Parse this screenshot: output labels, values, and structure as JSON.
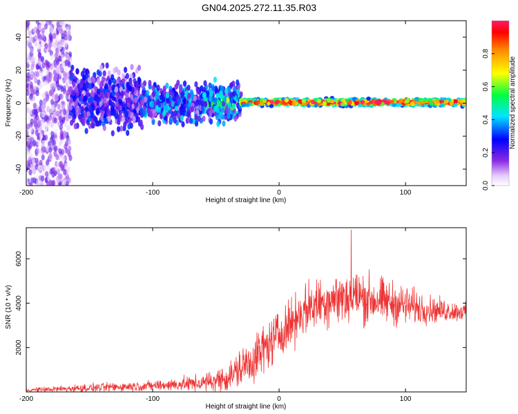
{
  "title": "GN04.2025.272.11.35.R03",
  "chart_data": [
    {
      "type": "heatmap",
      "title": "GN04.2025.272.11.35.R03",
      "xlabel": "Height of straight line (km)",
      "ylabel": "Frequency (Hz)",
      "xlim": [
        -200,
        148
      ],
      "ylim": [
        -50,
        50
      ],
      "xticks": [
        -200,
        -100,
        0,
        100
      ],
      "xtick_labels": [
        "-200",
        "-100",
        "0",
        "100"
      ],
      "yticks": [
        -40,
        -20,
        0,
        20,
        40
      ],
      "ytick_labels": [
        "-40",
        "-20",
        "0",
        "20",
        "40"
      ],
      "colorbar": {
        "label": "Normalized spectral amplitude",
        "range": [
          0,
          1
        ],
        "ticks": [
          0,
          0.2,
          0.4,
          0.6,
          0.8
        ],
        "tick_labels": [
          "0.0",
          "0.2",
          "0.4",
          "0.6",
          "0.8"
        ],
        "colormap": [
          "#ffffff",
          "#d9b3ff",
          "#8000ff",
          "#0000ff",
          "#00ffff",
          "#00ff00",
          "#ffff00",
          "#ff8000",
          "#ff0000",
          "#ff1060"
        ]
      },
      "regions": [
        {
          "x_range": [
            -200,
            -165
          ],
          "freq_center": 0,
          "freq_spread": 50,
          "amplitude": 0.12,
          "description_value": "scattered low-amplitude noise"
        },
        {
          "x_range": [
            -165,
            -110
          ],
          "freq_center": 2,
          "freq_spread": 15,
          "amplitude": 0.22
        },
        {
          "x_range": [
            -110,
            -30
          ],
          "freq_center": 0,
          "freq_spread": 10,
          "amplitude": 0.3
        },
        {
          "x_range": [
            -30,
            148
          ],
          "freq_center": 0.5,
          "freq_spread": 3,
          "amplitude": 0.95
        }
      ]
    },
    {
      "type": "line",
      "xlabel": "Height of straight line (km)",
      "ylabel": "SNR (10 * v/v)",
      "xlim": [
        -200,
        148
      ],
      "ylim": [
        0,
        7400
      ],
      "xticks": [
        -200,
        -100,
        0,
        100
      ],
      "xtick_labels": [
        "-200",
        "-100",
        "0",
        "100"
      ],
      "yticks": [
        2000,
        4000,
        6000
      ],
      "ytick_labels": [
        "2000",
        "4000",
        "6000"
      ],
      "series": [
        {
          "name": "SNR",
          "color": "#ee3333",
          "trend": {
            "x": [
              -200,
              -150,
              -100,
              -60,
              -40,
              -20,
              0,
              20,
              40,
              60,
              80,
              100,
              120,
              148
            ],
            "mean": [
              80,
              180,
              280,
              400,
              650,
              1500,
              2600,
              3700,
              4200,
              4300,
              4100,
              3900,
              3700,
              3600
            ],
            "spread": [
              120,
              250,
              300,
              500,
              900,
              1500,
              1400,
              1500,
              1600,
              1700,
              1400,
              1200,
              800,
              500
            ]
          },
          "peak": {
            "x": 57,
            "y": 7300
          }
        }
      ]
    }
  ]
}
